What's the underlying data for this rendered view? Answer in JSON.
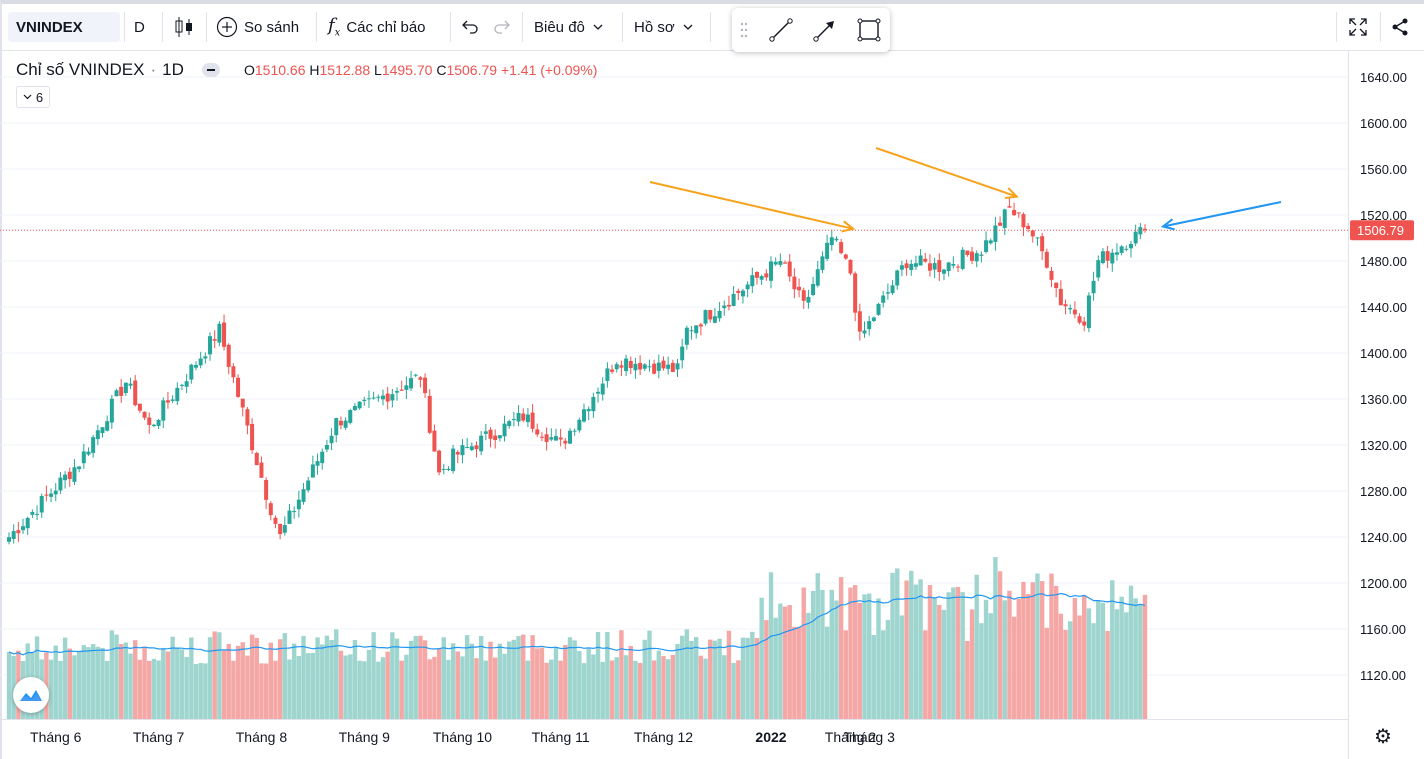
{
  "toolbar": {
    "symbol": "VNINDEX",
    "interval": "D",
    "compare_label": "So sánh",
    "indicators_label": "Các chỉ báo",
    "chart_label": "Biêu đô",
    "profile_label": "Hồ sơ"
  },
  "legend": {
    "name": "Chỉ số VNINDEX",
    "interval": "1D",
    "o_key": "O",
    "o_val": "1510.66",
    "h_key": "H",
    "h_val": "1512.88",
    "l_key": "L",
    "l_val": "1495.70",
    "c_key": "C",
    "c_val": "1506.79",
    "change": "+1.41 (+0.09%)",
    "collapsed_count": "6"
  },
  "colors": {
    "up": "#26a69a",
    "down": "#ef5350",
    "vol_up": "#9fd5cf",
    "vol_down": "#f4a7a5",
    "ma": "#2196f3",
    "arrow_orange": "#f7a21b",
    "arrow_blue": "#2196f3"
  },
  "chart_data": {
    "type": "candlestick",
    "title": "Chỉ số VNINDEX · 1D",
    "ylim": [
      1090,
      1650
    ],
    "y_ticks": [
      "1640.00",
      "1600.00",
      "1560.00",
      "1520.00",
      "1480.00",
      "1440.00",
      "1400.00",
      "1360.00",
      "1320.00",
      "1280.00",
      "1240.00",
      "1200.00",
      "1160.00",
      "1120.00"
    ],
    "last_price_label": "1506.79",
    "last_price": 1506.79,
    "x_labels": [
      "Tháng 6",
      "Tháng 7",
      "Tháng 8",
      "Tháng 9",
      "Tháng 10",
      "Tháng 11",
      "Tháng 12",
      "2022",
      "Tháng 2",
      "Tháng 3"
    ],
    "x_label_bold": [
      false,
      false,
      false,
      false,
      false,
      false,
      false,
      true,
      false,
      false
    ],
    "bars_per_month": [
      22,
      22,
      22,
      21,
      21,
      22,
      23,
      17,
      4
    ],
    "close_anchors": [
      [
        0,
        1240
      ],
      [
        15,
        1305
      ],
      [
        25,
        1375
      ],
      [
        30,
        1335
      ],
      [
        45,
        1420
      ],
      [
        55,
        1278
      ],
      [
        58,
        1240
      ],
      [
        70,
        1340
      ],
      [
        88,
        1380
      ],
      [
        92,
        1295
      ],
      [
        95,
        1310
      ],
      [
        110,
        1345
      ],
      [
        118,
        1320
      ],
      [
        130,
        1395
      ],
      [
        143,
        1385
      ],
      [
        145,
        1420
      ],
      [
        165,
        1480
      ],
      [
        170,
        1440
      ],
      [
        176,
        1500
      ],
      [
        180,
        1470
      ],
      [
        182,
        1412
      ],
      [
        192,
        1480
      ],
      [
        199,
        1475
      ],
      [
        208,
        1490
      ],
      [
        214,
        1525
      ],
      [
        218,
        1510
      ],
      [
        222,
        1480
      ],
      [
        225,
        1445
      ],
      [
        230,
        1430
      ],
      [
        233,
        1480
      ],
      [
        240,
        1500
      ],
      [
        243,
        1506.79
      ]
    ],
    "volume_ma_note": "moving average line over volume",
    "annotations": [
      "orange arrow to Dec peak",
      "orange arrow to Jan peak",
      "blue arrow to last bar"
    ]
  }
}
